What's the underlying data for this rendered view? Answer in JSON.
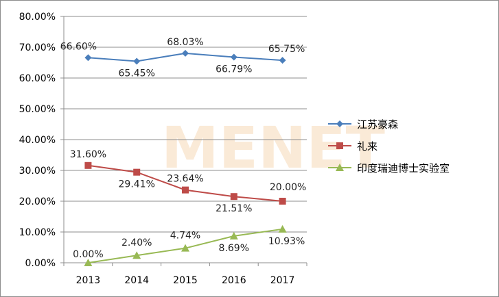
{
  "watermark": "MENET",
  "chart_data": {
    "type": "line",
    "title": "",
    "xlabel": "",
    "ylabel": "",
    "categories": [
      "2013",
      "2014",
      "2015",
      "2016",
      "2017"
    ],
    "ylim": [
      0,
      80
    ],
    "yticks": [
      "0.00%",
      "10.00%",
      "20.00%",
      "30.00%",
      "40.00%",
      "50.00%",
      "60.00%",
      "70.00%",
      "80.00%"
    ],
    "grid": true,
    "legend_position": "right",
    "series": [
      {
        "name": "江苏豪森",
        "color": "#4a7ebb",
        "marker": "diamond",
        "values": [
          66.6,
          65.45,
          68.03,
          66.79,
          65.75
        ],
        "labels": [
          "66.60%",
          "65.45%",
          "68.03%",
          "66.79%",
          "65.75%"
        ]
      },
      {
        "name": "礼来",
        "color": "#be4b48",
        "marker": "square",
        "values": [
          31.6,
          29.41,
          23.64,
          21.51,
          20.0
        ],
        "labels": [
          "31.60%",
          "29.41%",
          "23.64%",
          "21.51%",
          "20.00%"
        ]
      },
      {
        "name": "印度瑞迪博士实验室",
        "color": "#98b954",
        "marker": "triangle",
        "values": [
          0.0,
          2.4,
          4.74,
          8.69,
          10.93
        ],
        "labels": [
          "0.00%",
          "2.40%",
          "4.74%",
          "8.69%",
          "10.93%"
        ]
      }
    ]
  }
}
